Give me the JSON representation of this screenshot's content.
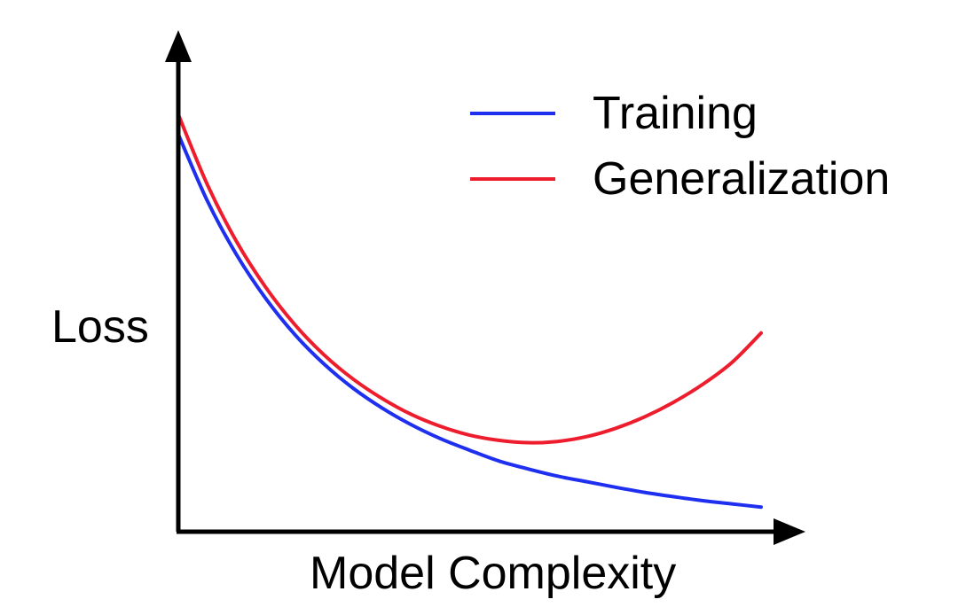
{
  "chart_data": {
    "type": "line",
    "title": "",
    "xlabel": "Model Complexity",
    "ylabel": "Loss",
    "grid": false,
    "legend_position": "top-right",
    "xlim": [
      0,
      10
    ],
    "ylim": [
      0,
      10
    ],
    "ticks": "none",
    "series": [
      {
        "name": "Training",
        "color": "#1f2ff0",
        "x": [
          0,
          0.5,
          1,
          1.5,
          2,
          2.5,
          3,
          3.5,
          4,
          4.5,
          5,
          5.5,
          6,
          6.5,
          7,
          7.5,
          8,
          8.5,
          9,
          9.5,
          10
        ],
        "y": [
          10.0,
          8.32,
          6.97,
          5.87,
          4.96,
          4.22,
          3.61,
          3.11,
          2.69,
          2.34,
          2.05,
          1.78,
          1.58,
          1.4,
          1.26,
          1.12,
          0.99,
          0.88,
          0.78,
          0.7,
          0.62
        ]
      },
      {
        "name": "Generalization",
        "color": "#ee1d2d",
        "x": [
          0,
          0.5,
          1,
          1.5,
          2,
          2.5,
          3,
          3.5,
          4,
          4.5,
          5,
          5.5,
          6,
          6.5,
          7,
          7.5,
          8,
          8.5,
          9,
          9.5,
          10
        ],
        "y": [
          10.5,
          8.73,
          7.3,
          6.15,
          5.21,
          4.45,
          3.84,
          3.35,
          2.95,
          2.65,
          2.43,
          2.3,
          2.24,
          2.27,
          2.39,
          2.6,
          2.89,
          3.26,
          3.71,
          4.26,
          5.0
        ]
      }
    ]
  }
}
